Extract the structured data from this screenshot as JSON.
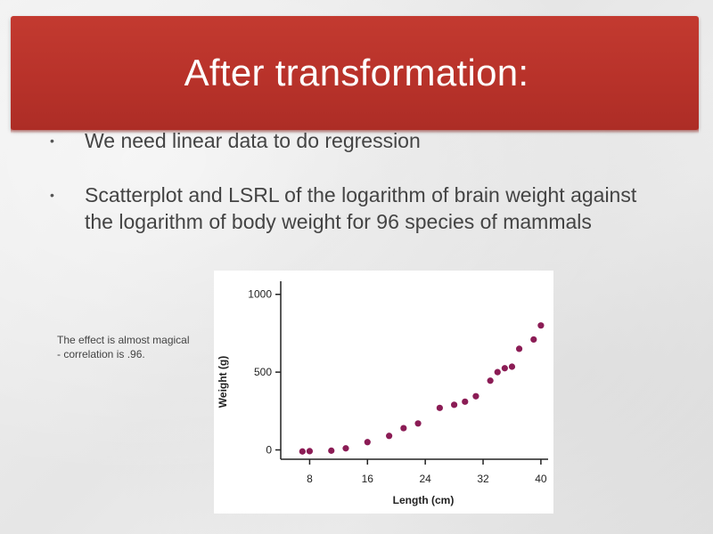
{
  "slide": {
    "title": "After transformation:",
    "bullets": [
      "We need linear data to do regression",
      "Scatterplot and LSRL of the logarithm of brain weight against the logarithm of body weight for 96 species of mammals"
    ],
    "note": "The effect is almost magical - correlation is .96.",
    "colors": {
      "banner": "#b8322a",
      "point": "#8b1c55"
    }
  },
  "chart_data": {
    "type": "scatter",
    "title": "",
    "xlabel": "Length (cm)",
    "ylabel": "Weight (g)",
    "xlim": [
      4,
      41
    ],
    "ylim": [
      -60,
      1050
    ],
    "x_ticks": [
      8,
      16,
      24,
      32,
      40
    ],
    "y_ticks": [
      0,
      500,
      1000
    ],
    "grid": false,
    "x": [
      7,
      8,
      11,
      13,
      16,
      19,
      21,
      23,
      26,
      28,
      29.5,
      31,
      33,
      34,
      35,
      36,
      37,
      39,
      40
    ],
    "y": [
      -10,
      -8,
      -5,
      10,
      50,
      90,
      140,
      170,
      270,
      290,
      310,
      345,
      445,
      500,
      525,
      535,
      650,
      710,
      800
    ]
  }
}
